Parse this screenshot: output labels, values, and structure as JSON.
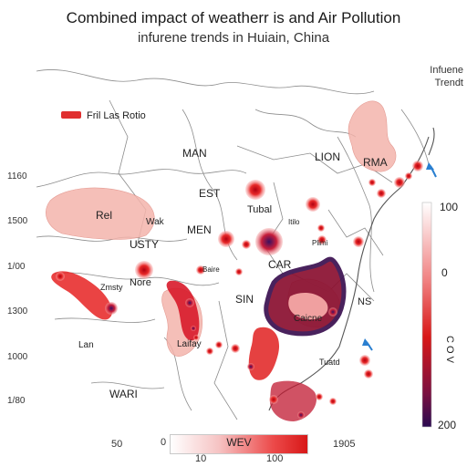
{
  "title": "Combined impact of weatherr is and Air Pollution",
  "subtitle": "infurene trends in Huiain, China",
  "top_right_label": [
    "Infuene",
    "Trendt"
  ],
  "legend": {
    "label": "Fril Las Rotio",
    "swatch_color": "#e03030"
  },
  "left_axis_labels": [
    "1160",
    "1500",
    "1/00",
    "1300",
    "1000",
    "1/80"
  ],
  "map_labels": [
    "MAN",
    "LION",
    "RMA",
    "EST",
    "Tubal",
    "Rel",
    "Wak",
    "MEN",
    "USTY",
    "Nore",
    "CAR",
    "SIN",
    "Caicne",
    "NS",
    "Laifay",
    "WARI",
    "Lan",
    "Tuatd",
    "Zmsty",
    "Baire",
    "Plimi",
    "Itilo"
  ],
  "colorbar": {
    "top": "100",
    "middle": "0",
    "side": "C O V",
    "bottom": "200"
  },
  "bottom_scale": {
    "left_number": "50",
    "zero": "0",
    "left_tick": "10",
    "center": "WEV",
    "right_tick": "100",
    "year": "1905"
  },
  "colors": {
    "light_red": "#f4b4ac",
    "red": "#e02020",
    "dark_purple": "#3a1050",
    "accent_blue": "#2a7fd0"
  }
}
